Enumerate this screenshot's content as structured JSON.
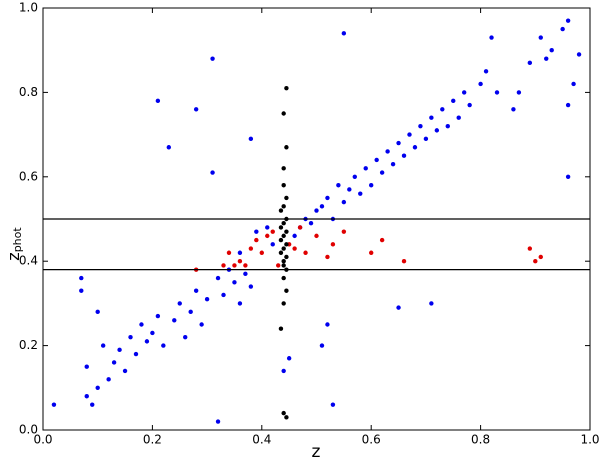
{
  "chart_data": {
    "type": "scatter",
    "xlabel": "z",
    "ylabel": "z",
    "ylabel_sub": "phot",
    "xlim": [
      0,
      1
    ],
    "ylim": [
      0,
      1
    ],
    "xticks": [
      {
        "value": 0,
        "label": "0.0"
      },
      {
        "value": 0.2,
        "label": "0.2"
      },
      {
        "value": 0.4,
        "label": "0.4"
      },
      {
        "value": 0.6,
        "label": "0.6"
      },
      {
        "value": 0.8,
        "label": "0.8"
      },
      {
        "value": 1,
        "label": "1.0"
      }
    ],
    "yticks": [
      {
        "value": 0,
        "label": "0.0"
      },
      {
        "value": 0.2,
        "label": "0.2"
      },
      {
        "value": 0.4,
        "label": "0.4"
      },
      {
        "value": 0.6,
        "label": "0.6"
      },
      {
        "value": 0.8,
        "label": "0.8"
      },
      {
        "value": 1,
        "label": "1.0"
      }
    ],
    "hlines": [
      0.38,
      0.5
    ],
    "series": [
      {
        "color": "#0000ee",
        "x": [
          0.02,
          0.07,
          0.07,
          0.08,
          0.08,
          0.09,
          0.1,
          0.1,
          0.11,
          0.12,
          0.13,
          0.14,
          0.15,
          0.16,
          0.17,
          0.18,
          0.19,
          0.2,
          0.21,
          0.21,
          0.22,
          0.23,
          0.24,
          0.25,
          0.26,
          0.27,
          0.28,
          0.28,
          0.29,
          0.3,
          0.31,
          0.31,
          0.32,
          0.32,
          0.33,
          0.34,
          0.35,
          0.36,
          0.36,
          0.37,
          0.38,
          0.38,
          0.39,
          0.41,
          0.42,
          0.46,
          0.47,
          0.48,
          0.49,
          0.5,
          0.51,
          0.51,
          0.52,
          0.53,
          0.53,
          0.54,
          0.55,
          0.55,
          0.56,
          0.57,
          0.58,
          0.59,
          0.6,
          0.61,
          0.62,
          0.63,
          0.64,
          0.65,
          0.65,
          0.66,
          0.67,
          0.68,
          0.69,
          0.7,
          0.71,
          0.71,
          0.72,
          0.73,
          0.74,
          0.75,
          0.76,
          0.77,
          0.78,
          0.8,
          0.81,
          0.82,
          0.83,
          0.86,
          0.87,
          0.89,
          0.91,
          0.92,
          0.93,
          0.95,
          0.96,
          0.96,
          0.97,
          0.98,
          0.96,
          0.44,
          0.45,
          0.52
        ],
        "values": [
          0.06,
          0.36,
          0.33,
          0.08,
          0.15,
          0.06,
          0.1,
          0.28,
          0.2,
          0.12,
          0.16,
          0.19,
          0.14,
          0.22,
          0.18,
          0.25,
          0.21,
          0.23,
          0.27,
          0.78,
          0.2,
          0.67,
          0.26,
          0.3,
          0.22,
          0.28,
          0.76,
          0.33,
          0.25,
          0.31,
          0.61,
          0.88,
          0.02,
          0.36,
          0.32,
          0.38,
          0.35,
          0.3,
          0.42,
          0.37,
          0.34,
          0.69,
          0.47,
          0.48,
          0.44,
          0.46,
          0.48,
          0.5,
          0.49,
          0.52,
          0.2,
          0.53,
          0.55,
          0.5,
          0.06,
          0.58,
          0.54,
          0.94,
          0.57,
          0.6,
          0.56,
          0.62,
          0.58,
          0.64,
          0.61,
          0.66,
          0.63,
          0.29,
          0.68,
          0.65,
          0.7,
          0.67,
          0.72,
          0.69,
          0.3,
          0.74,
          0.71,
          0.76,
          0.72,
          0.78,
          0.74,
          0.8,
          0.77,
          0.82,
          0.85,
          0.93,
          0.8,
          0.76,
          0.8,
          0.87,
          0.93,
          0.88,
          0.9,
          0.95,
          0.6,
          0.97,
          0.82,
          0.89,
          0.77,
          0.14,
          0.17,
          0.25
        ]
      },
      {
        "color": "#e00000",
        "x": [
          0.28,
          0.33,
          0.34,
          0.35,
          0.36,
          0.37,
          0.38,
          0.39,
          0.4,
          0.41,
          0.42,
          0.43,
          0.45,
          0.46,
          0.47,
          0.48,
          0.5,
          0.52,
          0.53,
          0.55,
          0.6,
          0.62,
          0.66,
          0.89,
          0.9,
          0.91
        ],
        "values": [
          0.38,
          0.39,
          0.42,
          0.39,
          0.4,
          0.39,
          0.43,
          0.45,
          0.42,
          0.46,
          0.47,
          0.39,
          0.44,
          0.43,
          0.48,
          0.42,
          0.46,
          0.41,
          0.44,
          0.47,
          0.42,
          0.45,
          0.4,
          0.43,
          0.4,
          0.41
        ]
      },
      {
        "color": "#000000",
        "x": [
          0.445,
          0.44,
          0.445,
          0.44,
          0.44,
          0.445,
          0.44,
          0.435,
          0.445,
          0.44,
          0.435,
          0.445,
          0.44,
          0.435,
          0.445,
          0.44,
          0.435,
          0.445,
          0.44,
          0.44,
          0.445,
          0.44,
          0.445,
          0.44,
          0.435,
          0.44,
          0.445
        ],
        "values": [
          0.81,
          0.75,
          0.67,
          0.62,
          0.58,
          0.55,
          0.53,
          0.52,
          0.5,
          0.49,
          0.48,
          0.47,
          0.46,
          0.45,
          0.44,
          0.43,
          0.42,
          0.41,
          0.4,
          0.39,
          0.38,
          0.36,
          0.33,
          0.3,
          0.24,
          0.04,
          0.03
        ]
      }
    ]
  }
}
